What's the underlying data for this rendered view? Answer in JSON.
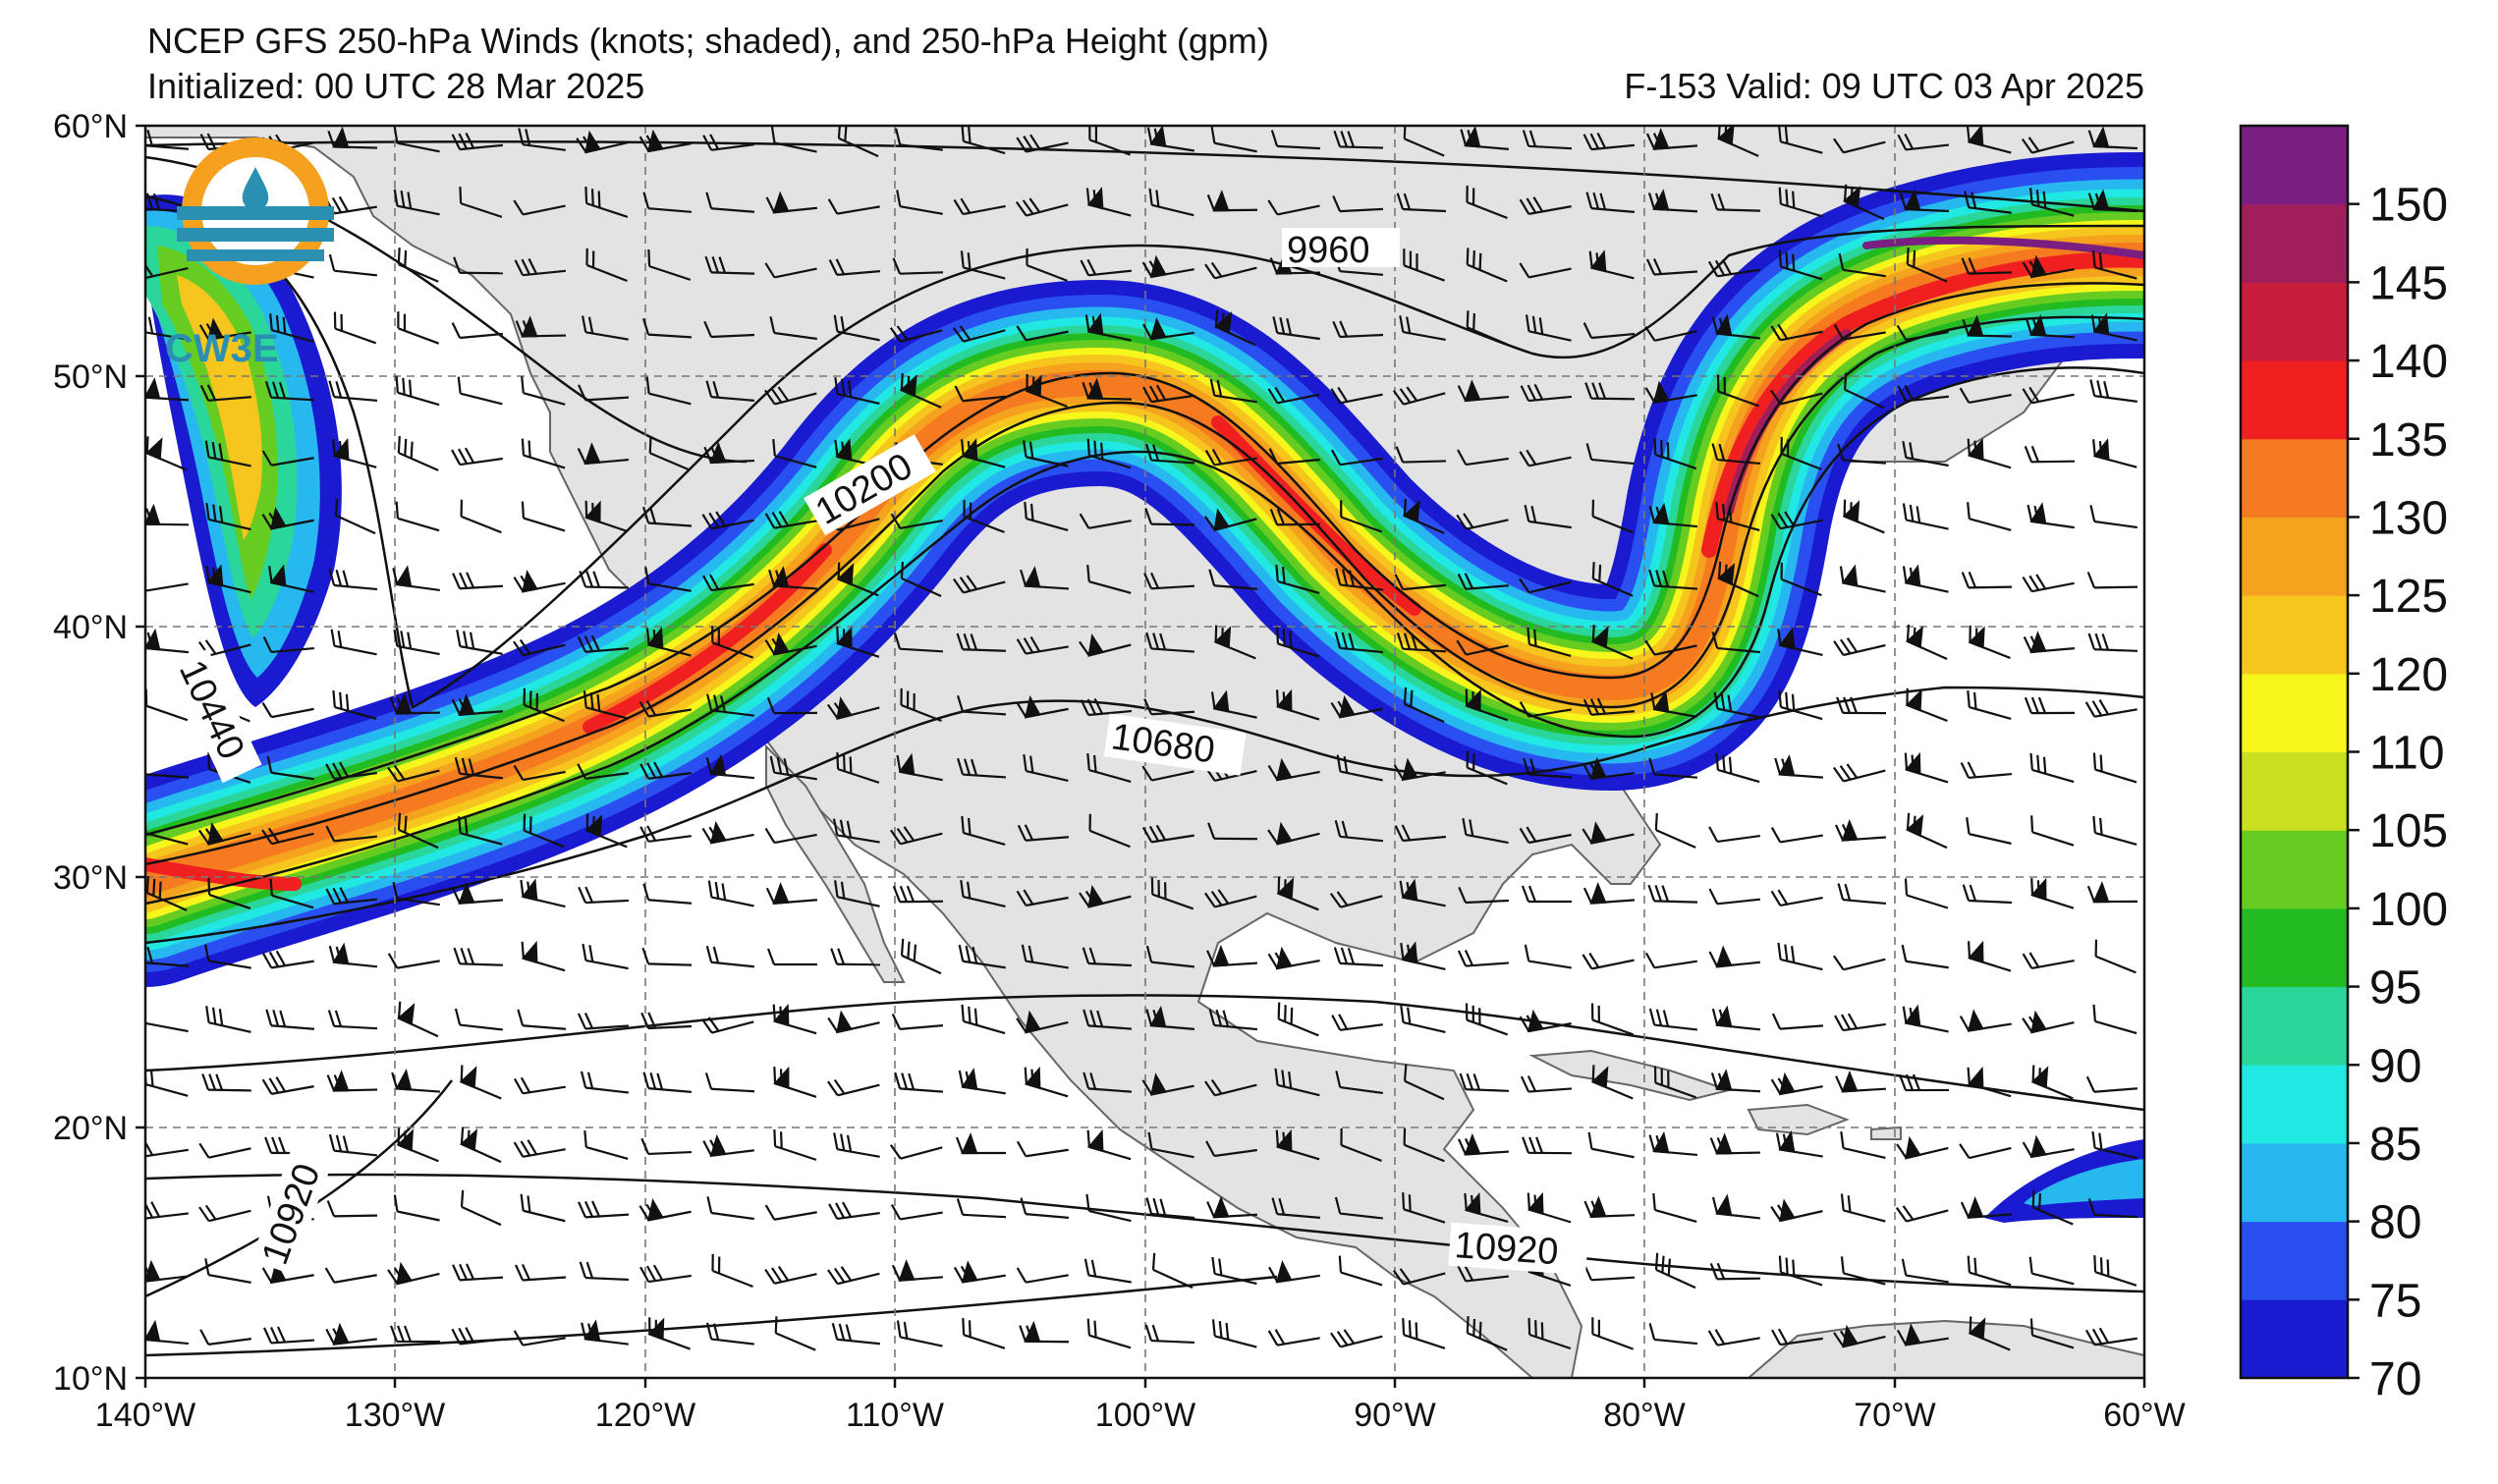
{
  "title": {
    "line1": "NCEP GFS 250-hPa Winds (knots; shaded), and 250-hPa Height (gpm)",
    "line2": "Initialized: 00 UTC 28 Mar 2025",
    "valid": "F-153  Valid: 09 UTC 03 Apr 2025"
  },
  "logo": {
    "text": "CW3E"
  },
  "axes": {
    "lat_labels": [
      "10°N",
      "20°N",
      "30°N",
      "40°N",
      "50°N",
      "60°N"
    ],
    "lon_labels": [
      "140°W",
      "130°W",
      "120°W",
      "110°W",
      "100°W",
      "90°W",
      "80°W",
      "70°W",
      "60°W"
    ],
    "lat_range": [
      10,
      60
    ],
    "lon_range": [
      -140,
      -60
    ]
  },
  "colorbar": {
    "labels": [
      "70",
      "75",
      "80",
      "85",
      "90",
      "95",
      "100",
      "105",
      "110",
      "120",
      "125",
      "130",
      "135",
      "140",
      "145",
      "150"
    ],
    "colors": [
      "#1a1ad0",
      "#2a4ff0",
      "#27b8f0",
      "#22e8e4",
      "#2bd69a",
      "#22bb22",
      "#66cc22",
      "#c8e020",
      "#f6f61c",
      "#f6c61e",
      "#f5a21e",
      "#f57a20",
      "#f02020",
      "#c81e3c",
      "#a01e5a",
      "#7a1e82"
    ]
  },
  "contour_labels": [
    "9960",
    "10200",
    "10440",
    "10680",
    "10920",
    "10920"
  ]
}
